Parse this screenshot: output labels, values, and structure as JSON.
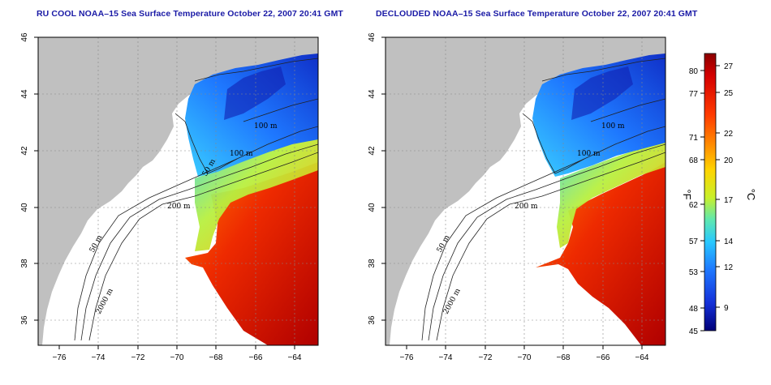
{
  "panels": [
    {
      "title": "RU COOL NOAA–15 Sea Surface Temperature October 22, 2007 20:41 GMT",
      "contour_labels": [
        "100 m",
        "100 m",
        "50 m",
        "200 m",
        "50 m",
        "2000 m"
      ]
    },
    {
      "title": "DECLOUDED NOAA–15 Sea Surface Temperature October 22, 2007 20:41 GMT",
      "contour_labels": [
        "100 m",
        "100 m",
        "200 m",
        "50 m",
        "2000 m"
      ]
    }
  ],
  "axes": {
    "x_ticks": [
      "−76",
      "−74",
      "−72",
      "−70",
      "−68",
      "−66",
      "−64"
    ],
    "y_ticks": [
      "46",
      "44",
      "42",
      "40",
      "38",
      "36"
    ]
  },
  "colorbar": {
    "fahrenheit_ticks": [
      "80",
      "77",
      "71",
      "68",
      "62",
      "57",
      "53",
      "48",
      "45"
    ],
    "celsius_ticks": [
      "27",
      "25",
      "22",
      "20",
      "17",
      "14",
      "12",
      "9"
    ],
    "fahrenheit_unit": "°F",
    "celsius_unit": "°C"
  },
  "colors": {
    "land": "#c0c0c0",
    "ocean_no_data": "#ffffff",
    "title_text": "#1a1aa6",
    "cold": "#0a1fa8",
    "warm": "#c80000"
  }
}
